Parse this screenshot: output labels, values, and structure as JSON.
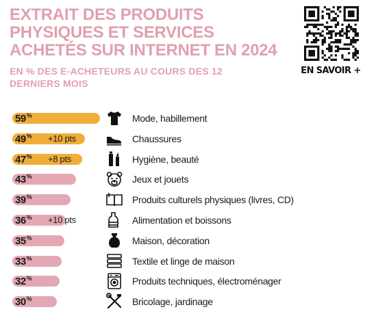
{
  "header": {
    "title": "EXTRAIT DES PRODUITS PHYSIQUES ET SERVICES ACHETÉS SUR INTERNET EN 2024",
    "subtitle": "EN % DES E-ACHETEURS AU COURS DES 12 DERNIERS MOIS",
    "learn_more": "EN SAVOIR +"
  },
  "colors": {
    "title": "#e0a0ad",
    "bar_highlight": "#f0ad3a",
    "bar_default": "#e3a8b3"
  },
  "chart_data": {
    "type": "bar",
    "orientation": "horizontal",
    "title": "EXTRAIT DES PRODUITS PHYSIQUES ET SERVICES ACHETÉS SUR INTERNET EN 2024",
    "subtitle": "EN % DES E-ACHETEURS AU COURS DES 12 DERNIERS MOIS",
    "unit": "%",
    "xlim": [
      0,
      59
    ],
    "grid": false,
    "categories": [
      "Mode, habillement",
      "Chaussures",
      "Hygiène, beauté",
      "Jeux et jouets",
      "Produits culturels physiques (livres, CD)",
      "Alimentation et boissons",
      "Maison, décoration",
      "Textile et linge de maison",
      "Produits techniques, électroménager",
      "Bricolage, jardinage"
    ],
    "values": [
      59,
      49,
      47,
      43,
      39,
      36,
      35,
      33,
      32,
      30
    ],
    "highlight": [
      true,
      true,
      true,
      false,
      false,
      false,
      false,
      false,
      false,
      false
    ],
    "changes": [
      "",
      "+10 pts",
      "+8 pts",
      "",
      "",
      "+10 pts",
      "",
      "",
      "",
      ""
    ],
    "icons": [
      "tshirt-icon",
      "shoe-icon",
      "cosmetics-icon",
      "teddy-bear-icon",
      "book-icon",
      "food-jar-icon",
      "vase-icon",
      "towels-icon",
      "washing-machine-icon",
      "tools-icon"
    ]
  }
}
